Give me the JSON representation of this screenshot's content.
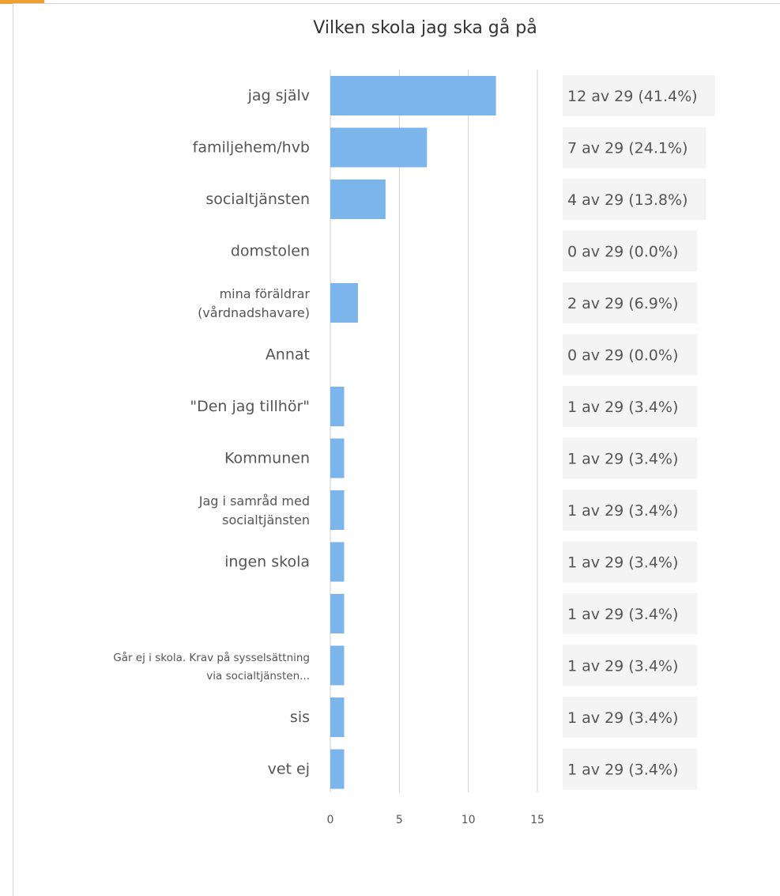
{
  "chart_data": {
    "type": "bar",
    "orientation": "horizontal",
    "title": "Vilken skola jag ska gå på",
    "xlabel": "",
    "ylabel": "",
    "xlim": [
      0,
      15
    ],
    "xticks": [
      0,
      5,
      10,
      15
    ],
    "grid": true,
    "bar_color": "#7cb5ec",
    "categories": [
      [
        "jag själv"
      ],
      [
        "familjehem/hvb"
      ],
      [
        "socialtjänsten"
      ],
      [
        "domstolen"
      ],
      [
        "mina föräldrar",
        "(vårdnadshavare)"
      ],
      [
        "Annat"
      ],
      [
        "\"Den jag tillhör\""
      ],
      [
        "Kommunen"
      ],
      [
        "Jag i samråd med",
        "socialtjänsten"
      ],
      [
        "ingen skola"
      ],
      [
        ""
      ],
      [
        "Går ej i skola. Krav på sysselsättning",
        "via socialtjänsten..."
      ],
      [
        "sis"
      ],
      [
        "vet ej"
      ]
    ],
    "values": [
      12,
      7,
      4,
      0,
      2,
      0,
      1,
      1,
      1,
      1,
      1,
      1,
      1,
      1
    ],
    "value_labels": [
      "12 av 29 (41.4%)",
      "7 av 29 (24.1%)",
      "4 av 29 (13.8%)",
      "0 av 29 (0.0%)",
      "2 av 29 (6.9%)",
      "0 av 29 (0.0%)",
      "1 av 29 (3.4%)",
      "1 av 29 (3.4%)",
      "1 av 29 (3.4%)",
      "1 av 29 (3.4%)",
      "1 av 29 (3.4%)",
      "1 av 29 (3.4%)",
      "1 av 29 (3.4%)",
      "1 av 29 (3.4%)"
    ]
  },
  "colors": {
    "bar": "#7cb5ec",
    "grid": "#d0d0d0",
    "label_box": "#f4f4f4",
    "accent": "#f0a030"
  }
}
